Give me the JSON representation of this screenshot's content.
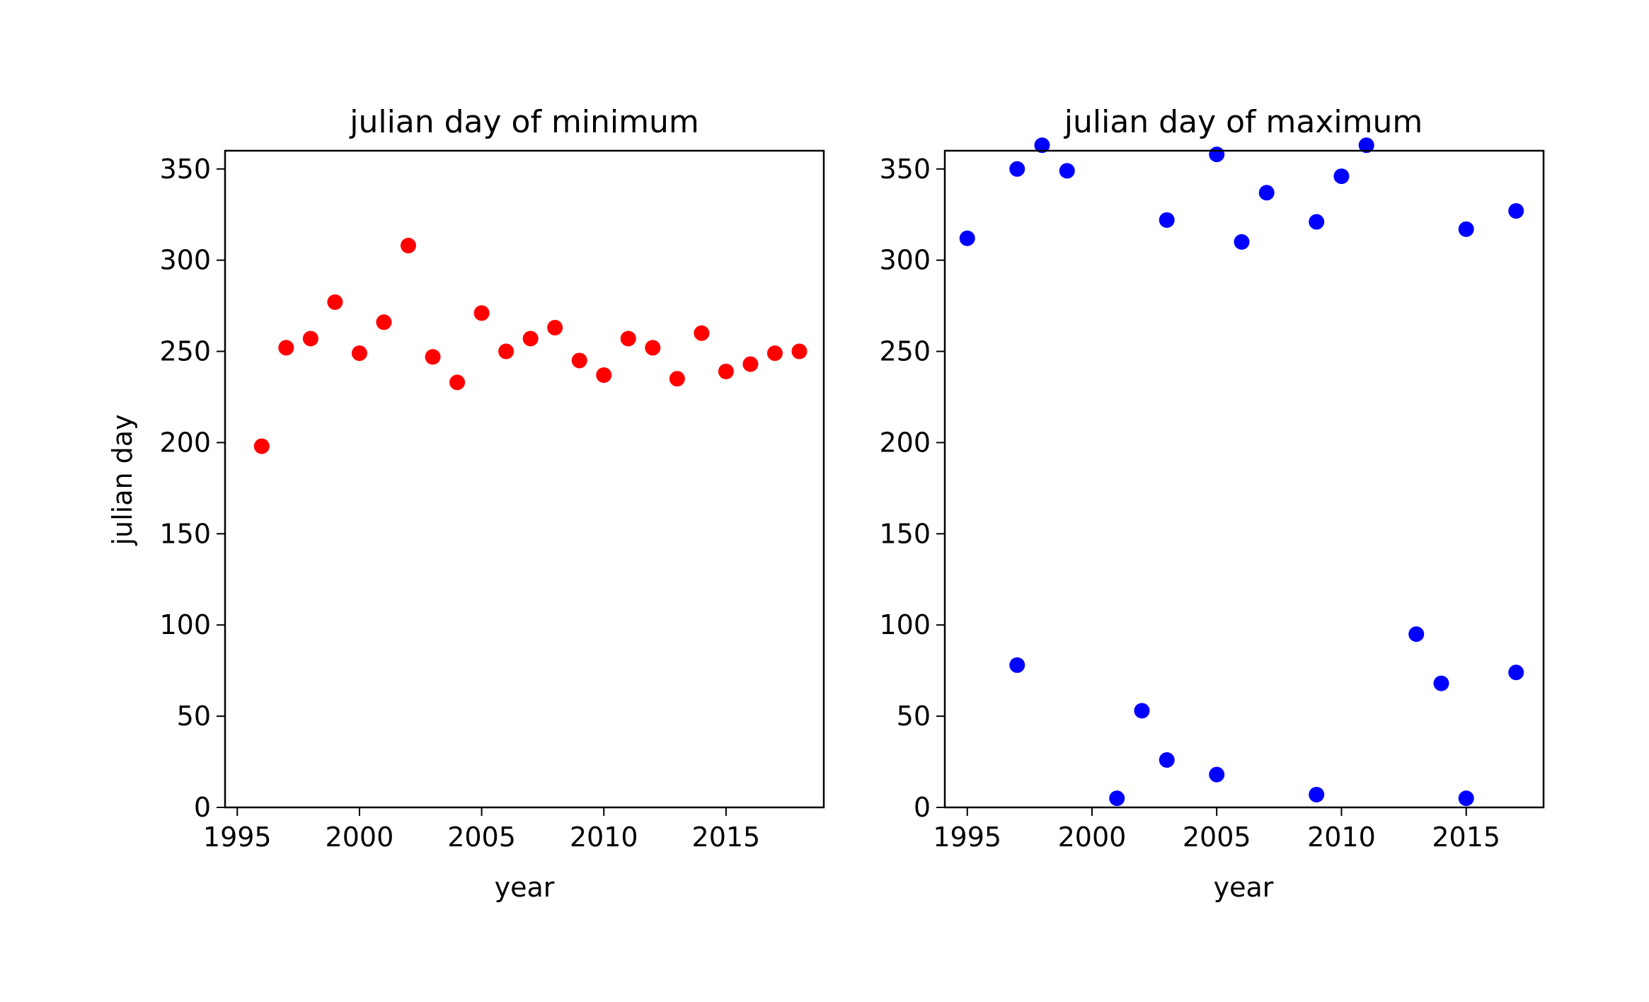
{
  "chart_data": [
    {
      "type": "scatter",
      "title": "julian day of minimum",
      "xlabel": "year",
      "ylabel": "julian day",
      "xlim": [
        1994.5,
        2019
      ],
      "ylim": [
        0,
        360
      ],
      "xticks": [
        1995,
        2000,
        2005,
        2010,
        2015
      ],
      "yticks": [
        0,
        50,
        100,
        150,
        200,
        250,
        300,
        350
      ],
      "color": "#ff0000",
      "x": [
        1996,
        1997,
        1998,
        1999,
        2000,
        2001,
        2002,
        2003,
        2004,
        2005,
        2006,
        2007,
        2008,
        2009,
        2010,
        2011,
        2012,
        2013,
        2014,
        2015,
        2016,
        2017,
        2018
      ],
      "y": [
        198,
        252,
        257,
        277,
        249,
        266,
        308,
        247,
        233,
        271,
        250,
        257,
        263,
        245,
        237,
        257,
        252,
        235,
        260,
        239,
        243,
        249,
        250
      ]
    },
    {
      "type": "scatter",
      "title": "julian day of maximum",
      "xlabel": "year",
      "ylabel": "",
      "xlim": [
        1994.1,
        2018.1
      ],
      "ylim": [
        0,
        360
      ],
      "xticks": [
        1995,
        2000,
        2005,
        2010,
        2015
      ],
      "yticks": [
        0,
        50,
        100,
        150,
        200,
        250,
        300,
        350
      ],
      "color": "#0000ff",
      "x": [
        1995,
        1997,
        1997,
        1998,
        1999,
        2001,
        2002,
        2003,
        2003,
        2005,
        2005,
        2006,
        2007,
        2009,
        2009,
        2010,
        2011,
        2013,
        2014,
        2015,
        2015,
        2017,
        2017
      ],
      "y": [
        312,
        350,
        78,
        363,
        349,
        5,
        53,
        322,
        26,
        358,
        18,
        310,
        337,
        321,
        7,
        346,
        363,
        95,
        68,
        317,
        5,
        327,
        74
      ]
    }
  ]
}
